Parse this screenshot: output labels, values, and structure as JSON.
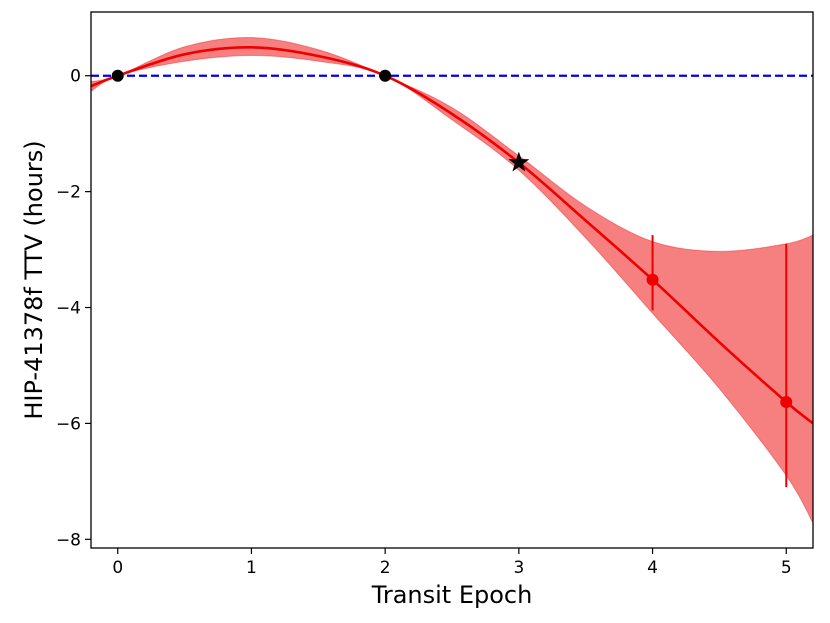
{
  "chart_data": {
    "type": "line",
    "title": "",
    "xlabel": "Transit Epoch",
    "ylabel": "HIP-41378f TTV (hours)",
    "xlim": [
      -0.2,
      5.2
    ],
    "ylim": [
      -8.15,
      1.1
    ],
    "xticks": [
      0,
      1,
      2,
      3,
      4,
      5
    ],
    "xtick_labels": [
      "0",
      "1",
      "2",
      "3",
      "4",
      "5"
    ],
    "yticks": [
      0,
      -2,
      -4,
      -6,
      -8
    ],
    "ytick_labels": [
      "0",
      "−2",
      "−4",
      "−6",
      "−8"
    ],
    "grid": false,
    "legend": "none",
    "reference_line": {
      "y": 0,
      "style": "dashed",
      "color": "#0000ee"
    },
    "model": {
      "color": "#ee0000",
      "x": [
        -0.2,
        0.0,
        0.5,
        1.0,
        1.5,
        2.0,
        2.5,
        3.0,
        3.5,
        4.0,
        4.5,
        5.0,
        5.2
      ],
      "y": [
        -0.18,
        0.0,
        0.37,
        0.49,
        0.34,
        0.0,
        -0.66,
        -1.5,
        -2.5,
        -3.52,
        -4.6,
        -5.63,
        -6.0
      ],
      "lower": [
        -0.27,
        0.0,
        0.25,
        0.35,
        0.25,
        0.0,
        -0.76,
        -1.63,
        -2.8,
        -4.1,
        -5.4,
        -6.9,
        -7.72
      ],
      "upper": [
        -0.1,
        0.0,
        0.5,
        0.66,
        0.45,
        0.0,
        -0.55,
        -1.38,
        -2.25,
        -2.86,
        -3.03,
        -2.9,
        -2.75
      ]
    },
    "observed": [
      {
        "x": 0,
        "y": 0,
        "color": "#000000"
      },
      {
        "x": 2,
        "y": 0,
        "color": "#000000"
      }
    ],
    "highlight": [
      {
        "x": 3,
        "y": -1.5,
        "marker": "star",
        "color": "#000000"
      }
    ],
    "predicted": [
      {
        "x": 4,
        "y": -3.52,
        "err_low": -4.05,
        "err_high": -2.75,
        "color": "#ee0000"
      },
      {
        "x": 5,
        "y": -5.63,
        "err_low": -7.1,
        "err_high": -2.9,
        "color": "#ee0000"
      }
    ]
  }
}
